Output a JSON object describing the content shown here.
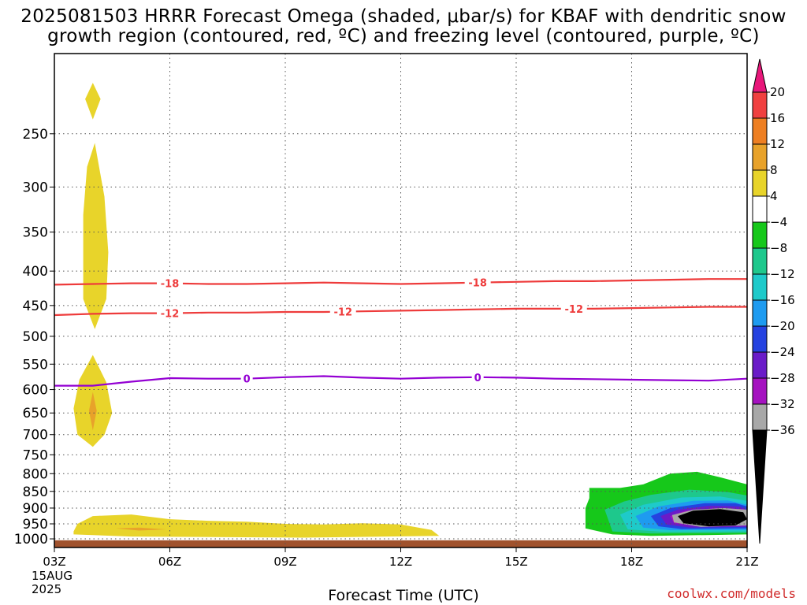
{
  "title_line1": "2025081503 HRRR Forecast Omega (shaded, μbar/s) for KBAF with dendritic snow",
  "title_line2": "growth region (contoured, red, ºC) and freezing level (contoured, purple, ºC)",
  "credit": "coolwx.com/models",
  "date_label_1": "15AUG",
  "date_label_2": "2025",
  "chart_data": {
    "type": "heatmap",
    "title": "2025081503 HRRR Forecast Omega (shaded, μbar/s) for KBAF with dendritic snow growth region (contoured, red, ºC) and freezing level (contoured, purple, ºC)",
    "xlabel": "Forecast Time (UTC)",
    "ylabel": "",
    "x_unit": "forecast hour",
    "xlim": [
      3,
      21
    ],
    "y_scale": "pressure (log)",
    "ylim_hpa": [
      1030,
      190
    ],
    "x_ticks": [
      {
        "hour": 3,
        "label": "03Z"
      },
      {
        "hour": 6,
        "label": "06Z"
      },
      {
        "hour": 9,
        "label": "09Z"
      },
      {
        "hour": 12,
        "label": "12Z"
      },
      {
        "hour": 15,
        "label": "15Z"
      },
      {
        "hour": 18,
        "label": "18Z"
      },
      {
        "hour": 21,
        "label": "21Z"
      }
    ],
    "y_ticks": [
      250,
      300,
      350,
      400,
      450,
      500,
      550,
      600,
      650,
      700,
      750,
      800,
      850,
      900,
      950,
      1000
    ],
    "grid": true,
    "colorbar": {
      "labels": [
        "20",
        "16",
        "12",
        "8",
        "4",
        "−4",
        "−8",
        "−12",
        "−16",
        "−20",
        "−24",
        "−28",
        "−32",
        "−36"
      ],
      "bins": [
        {
          "lo": 20,
          "hi": null,
          "color": "#e8177a"
        },
        {
          "lo": 16,
          "hi": 20,
          "color": "#f04040"
        },
        {
          "lo": 12,
          "hi": 16,
          "color": "#ee7f22"
        },
        {
          "lo": 8,
          "hi": 12,
          "color": "#e8a22a"
        },
        {
          "lo": 4,
          "hi": 8,
          "color": "#e8d42a"
        },
        {
          "lo": -4,
          "hi": 4,
          "color": "#ffffff"
        },
        {
          "lo": -8,
          "hi": -4,
          "color": "#16c81a"
        },
        {
          "lo": -12,
          "hi": -8,
          "color": "#1ec88c"
        },
        {
          "lo": -16,
          "hi": -12,
          "color": "#1ecaca"
        },
        {
          "lo": -20,
          "hi": -16,
          "color": "#1e9bf0"
        },
        {
          "lo": -24,
          "hi": -20,
          "color": "#2542e0"
        },
        {
          "lo": -28,
          "hi": -24,
          "color": "#6a1bc8"
        },
        {
          "lo": -32,
          "hi": -28,
          "color": "#a512c0"
        },
        {
          "lo": -36,
          "hi": -32,
          "color": "#a8a8a8"
        },
        {
          "lo": null,
          "hi": -36,
          "color": "#000000"
        }
      ]
    },
    "terrain": {
      "color": "#a0522d",
      "surface_hpa": 1005
    },
    "shaded_regions": [
      {
        "name": "upper-rising-tip",
        "fill": "#e8d42a",
        "points": [
          [
            4.0,
            210
          ],
          [
            4.2,
            222
          ],
          [
            4.0,
            238
          ],
          [
            3.8,
            222
          ]
        ]
      },
      {
        "name": "upper-rising-column",
        "fill": "#e8d42a",
        "points": [
          [
            4.05,
            258
          ],
          [
            4.3,
            310
          ],
          [
            4.4,
            375
          ],
          [
            4.35,
            440
          ],
          [
            4.05,
            488
          ],
          [
            3.75,
            440
          ],
          [
            3.75,
            330
          ],
          [
            3.85,
            280
          ]
        ]
      },
      {
        "name": "mid-rising-column",
        "fill": "#e8d42a",
        "points": [
          [
            4.0,
            533
          ],
          [
            4.35,
            585
          ],
          [
            4.5,
            650
          ],
          [
            4.3,
            700
          ],
          [
            4.0,
            730
          ],
          [
            3.6,
            700
          ],
          [
            3.5,
            640
          ],
          [
            3.65,
            580
          ]
        ]
      },
      {
        "name": "mid-rising-core",
        "fill": "#e8a22a",
        "points": [
          [
            4.0,
            605
          ],
          [
            4.1,
            645
          ],
          [
            4.0,
            690
          ],
          [
            3.9,
            645
          ]
        ]
      },
      {
        "name": "low-level-rising",
        "fill": "#e8d42a",
        "points": [
          [
            3.5,
            975
          ],
          [
            3.6,
            950
          ],
          [
            4.0,
            925
          ],
          [
            5.0,
            920
          ],
          [
            6.0,
            935
          ],
          [
            7.0,
            940
          ],
          [
            8.0,
            943
          ],
          [
            9.0,
            950
          ],
          [
            10.0,
            952
          ],
          [
            11.0,
            948
          ],
          [
            12.0,
            952
          ],
          [
            12.8,
            970
          ],
          [
            13.0,
            990
          ],
          [
            9.5,
            996
          ],
          [
            5.0,
            992
          ],
          [
            3.5,
            985
          ]
        ]
      },
      {
        "name": "low-level-core",
        "fill": "#e8a22a",
        "points": [
          [
            4.6,
            965
          ],
          [
            5.2,
            962
          ],
          [
            5.9,
            968
          ],
          [
            5.2,
            972
          ]
        ]
      },
      {
        "name": "sinking-bin-1",
        "fill": "#16c81a",
        "points": [
          [
            16.9,
            840
          ],
          [
            17.7,
            840
          ],
          [
            18.3,
            830
          ],
          [
            19.0,
            800
          ],
          [
            19.7,
            795
          ],
          [
            20.3,
            810
          ],
          [
            21.0,
            830
          ],
          [
            21.0,
            985
          ],
          [
            18.5,
            990
          ],
          [
            17.5,
            985
          ],
          [
            16.8,
            965
          ],
          [
            16.8,
            900
          ],
          [
            16.9,
            870
          ]
        ]
      },
      {
        "name": "sinking-bin-2",
        "fill": "#1ec88c",
        "points": [
          [
            17.3,
            905
          ],
          [
            17.8,
            880
          ],
          [
            18.5,
            860
          ],
          [
            19.5,
            845
          ],
          [
            20.5,
            852
          ],
          [
            21.0,
            862
          ],
          [
            21.0,
            980
          ],
          [
            18.5,
            982
          ],
          [
            17.5,
            975
          ]
        ]
      },
      {
        "name": "sinking-bin-3",
        "fill": "#1ecaca",
        "points": [
          [
            17.7,
            920
          ],
          [
            18.3,
            890
          ],
          [
            19.3,
            868
          ],
          [
            20.3,
            865
          ],
          [
            21.0,
            878
          ],
          [
            21.0,
            975
          ],
          [
            18.8,
            976
          ],
          [
            17.9,
            968
          ]
        ]
      },
      {
        "name": "sinking-bin-4",
        "fill": "#1e9bf0",
        "points": [
          [
            18.1,
            925
          ],
          [
            18.7,
            895
          ],
          [
            19.6,
            878
          ],
          [
            20.5,
            877
          ],
          [
            21.0,
            890
          ],
          [
            21.0,
            970
          ],
          [
            19.0,
            971
          ],
          [
            18.3,
            962
          ]
        ]
      },
      {
        "name": "sinking-bin-5",
        "fill": "#2542e0",
        "points": [
          [
            18.5,
            925
          ],
          [
            19.0,
            900
          ],
          [
            19.9,
            885
          ],
          [
            20.7,
            885
          ],
          [
            21.0,
            895
          ],
          [
            21.0,
            965
          ],
          [
            19.3,
            967
          ],
          [
            18.7,
            958
          ]
        ]
      },
      {
        "name": "sinking-bin-6",
        "fill": "#6a1bc8",
        "points": [
          [
            18.75,
            925
          ],
          [
            19.2,
            905
          ],
          [
            20.0,
            893
          ],
          [
            20.8,
            895
          ],
          [
            21.0,
            905
          ],
          [
            21.0,
            960
          ],
          [
            19.5,
            962
          ],
          [
            18.9,
            952
          ]
        ]
      },
      {
        "name": "sinking-bin-7",
        "fill": "#a512c0",
        "points": [
          [
            19.0,
            925
          ],
          [
            19.4,
            908
          ],
          [
            20.2,
            900
          ],
          [
            20.9,
            903
          ],
          [
            21.0,
            912
          ],
          [
            21.0,
            956
          ],
          [
            19.7,
            958
          ],
          [
            19.1,
            948
          ]
        ]
      },
      {
        "name": "sinking-bin-8",
        "fill": "#a8a8a8",
        "points": [
          [
            19.05,
            922
          ],
          [
            19.6,
            905
          ],
          [
            20.4,
            900
          ],
          [
            21.0,
            905
          ],
          [
            21.0,
            955
          ],
          [
            19.8,
            960
          ],
          [
            19.1,
            945
          ]
        ]
      },
      {
        "name": "sinking-bin-9",
        "fill": "#000000",
        "points": [
          [
            19.2,
            925
          ],
          [
            19.6,
            908
          ],
          [
            20.3,
            903
          ],
          [
            20.9,
            913
          ],
          [
            21.0,
            935
          ],
          [
            20.7,
            955
          ],
          [
            20.0,
            958
          ],
          [
            19.35,
            948
          ]
        ]
      }
    ],
    "contours": [
      {
        "value": "-18",
        "color": "#ee3b3b",
        "points": [
          [
            3,
            419
          ],
          [
            4,
            418
          ],
          [
            5,
            417
          ],
          [
            6,
            417
          ],
          [
            7,
            418
          ],
          [
            8,
            418
          ],
          [
            9,
            417
          ],
          [
            10,
            416
          ],
          [
            11,
            417
          ],
          [
            12,
            418
          ],
          [
            13,
            417
          ],
          [
            14,
            416
          ],
          [
            15,
            415
          ],
          [
            16,
            414
          ],
          [
            17,
            414
          ],
          [
            18,
            413
          ],
          [
            19,
            412
          ],
          [
            20,
            411
          ],
          [
            21,
            411
          ]
        ],
        "label_hours": [
          6,
          14
        ]
      },
      {
        "value": "-12",
        "color": "#ee3b3b",
        "points": [
          [
            3,
            465
          ],
          [
            4,
            463
          ],
          [
            5,
            462
          ],
          [
            6,
            462
          ],
          [
            7,
            461
          ],
          [
            8,
            461
          ],
          [
            9,
            460
          ],
          [
            10,
            460
          ],
          [
            11,
            459
          ],
          [
            12,
            458
          ],
          [
            13,
            457
          ],
          [
            14,
            456
          ],
          [
            15,
            455
          ],
          [
            16,
            455
          ],
          [
            17,
            455
          ],
          [
            18,
            454
          ],
          [
            19,
            453
          ],
          [
            20,
            452
          ],
          [
            21,
            452
          ]
        ],
        "label_hours": [
          6,
          10.5,
          16.5
        ]
      },
      {
        "value": "0",
        "color": "#9400d3",
        "points": [
          [
            3,
            592
          ],
          [
            4,
            592
          ],
          [
            5,
            584
          ],
          [
            6,
            577
          ],
          [
            7,
            578
          ],
          [
            8,
            578
          ],
          [
            9,
            575
          ],
          [
            10,
            573
          ],
          [
            11,
            576
          ],
          [
            12,
            578
          ],
          [
            13,
            576
          ],
          [
            14,
            575
          ],
          [
            15,
            576
          ],
          [
            16,
            578
          ],
          [
            17,
            579
          ],
          [
            18,
            580
          ],
          [
            19,
            581
          ],
          [
            20,
            582
          ],
          [
            21,
            578
          ]
        ],
        "label_hours": [
          8,
          14
        ]
      }
    ]
  }
}
